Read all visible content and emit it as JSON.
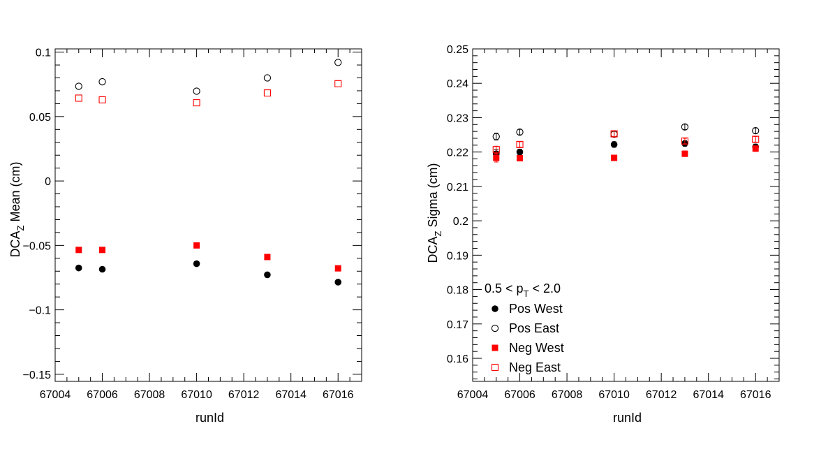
{
  "chart_data": [
    {
      "type": "scatter",
      "title": "",
      "xlabel": "runId",
      "ylabel": "DCA_Z Mean (cm)",
      "ylabel_main": "DCA",
      "ylabel_sub": "Z",
      "ylabel_rest": " Mean (cm)",
      "xlim": [
        67004,
        67017
      ],
      "ylim": [
        -0.1555,
        0.1025
      ],
      "x_ticks": [
        67004,
        67006,
        67008,
        67010,
        67012,
        67014,
        67016
      ],
      "x_tick_labels": [
        "67004",
        "67006",
        "67008",
        "67010",
        "67012",
        "67014",
        "67016"
      ],
      "y_ticks": [
        -0.15,
        -0.1,
        -0.05,
        0,
        0.05,
        0.1
      ],
      "y_tick_labels": [
        "−0.15",
        "−0.1",
        "−0.05",
        "0",
        "0.05",
        "0.1"
      ],
      "grid": false,
      "series": [
        {
          "name": "Pos West",
          "marker": "filled-circle",
          "color": "#000000",
          "x": [
            67005,
            67006,
            67010,
            67013,
            67016
          ],
          "y": [
            -0.0675,
            -0.0685,
            -0.0642,
            -0.0728,
            -0.0785
          ]
        },
        {
          "name": "Pos East",
          "marker": "open-circle",
          "color": "#000000",
          "x": [
            67005,
            67006,
            67010,
            67013,
            67016
          ],
          "y": [
            0.0735,
            0.077,
            0.0697,
            0.08,
            0.092
          ]
        },
        {
          "name": "Neg West",
          "marker": "filled-square",
          "color": "#ff0000",
          "x": [
            67005,
            67006,
            67010,
            67013,
            67016
          ],
          "y": [
            -0.0535,
            -0.0535,
            -0.05,
            -0.059,
            -0.0678
          ]
        },
        {
          "name": "Neg East",
          "marker": "open-square",
          "color": "#ff0000",
          "x": [
            67005,
            67006,
            67010,
            67013,
            67016
          ],
          "y": [
            0.0643,
            0.063,
            0.0607,
            0.0683,
            0.0755
          ]
        }
      ]
    },
    {
      "type": "scatter",
      "title": "",
      "xlabel": "runId",
      "ylabel": "DCA_Z Sigma (cm)",
      "ylabel_main": "DCA",
      "ylabel_sub": "Z",
      "ylabel_rest": " Sigma (cm)",
      "xlim": [
        67004,
        67017
      ],
      "ylim": [
        0.1533,
        0.25
      ],
      "x_ticks": [
        67004,
        67006,
        67008,
        67010,
        67012,
        67014,
        67016
      ],
      "x_tick_labels": [
        "67004",
        "67006",
        "67008",
        "67010",
        "67012",
        "67014",
        "67016"
      ],
      "y_ticks": [
        0.16,
        0.17,
        0.18,
        0.19,
        0.2,
        0.21,
        0.22,
        0.23,
        0.24,
        0.25
      ],
      "y_tick_labels": [
        "0.16",
        "0.17",
        "0.18",
        "0.19",
        "0.2",
        "0.21",
        "0.22",
        "0.23",
        "0.24",
        "0.25"
      ],
      "grid": false,
      "legend_placement": "bottom-left",
      "legend_header": {
        "main": "0.5 < p",
        "sub": "T",
        "rest": " < 2.0"
      },
      "series": [
        {
          "name": "Pos West",
          "marker": "filled-circle",
          "color": "#000000",
          "x": [
            67005,
            67006,
            67010,
            67013,
            67016
          ],
          "y": [
            0.2195,
            0.22,
            0.2222,
            0.2225,
            0.2215
          ],
          "err": [
            0.0012,
            0.0008,
            0.0008,
            0.0008,
            0.0008
          ]
        },
        {
          "name": "Pos East",
          "marker": "open-circle",
          "color": "#000000",
          "x": [
            67005,
            67006,
            67010,
            67013,
            67016
          ],
          "y": [
            0.2245,
            0.2258,
            0.2252,
            0.2273,
            0.2262
          ],
          "err": [
            0.001,
            0.0008,
            0.0008,
            0.0008,
            0.0008
          ]
        },
        {
          "name": "Neg West",
          "marker": "filled-square",
          "color": "#ff0000",
          "x": [
            67005,
            67006,
            67010,
            67013,
            67016
          ],
          "y": [
            0.2183,
            0.2182,
            0.2183,
            0.2195,
            0.221
          ],
          "err": [
            0.0012,
            0.0008,
            0.0008,
            0.0008,
            0.0008
          ]
        },
        {
          "name": "Neg East",
          "marker": "open-square",
          "color": "#ff0000",
          "x": [
            67005,
            67006,
            67010,
            67013,
            67016
          ],
          "y": [
            0.2207,
            0.2222,
            0.2253,
            0.2232,
            0.2237
          ],
          "err": [
            0.001,
            0.0008,
            0.0008,
            0.0008,
            0.0008
          ]
        }
      ]
    }
  ]
}
